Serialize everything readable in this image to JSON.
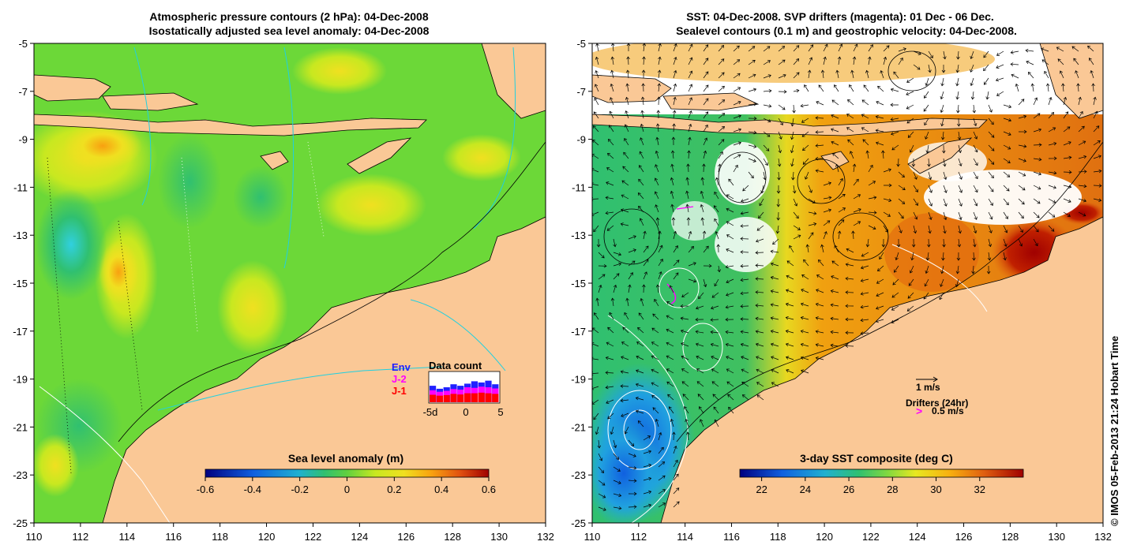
{
  "left_panel": {
    "title_line1": "Atmospheric pressure contours (2 hPa): 04-Dec-2008",
    "title_line2": "Isostatically adjusted sea level anomaly: 04-Dec-2008",
    "x_ticks": [
      "110",
      "112",
      "114",
      "116",
      "118",
      "120",
      "122",
      "124",
      "126",
      "128",
      "130",
      "132"
    ],
    "y_ticks": [
      "-5",
      "-7",
      "-9",
      "-11",
      "-13",
      "-15",
      "-17",
      "-19",
      "-21",
      "-23",
      "-25"
    ],
    "colorbar": {
      "title": "Sea level anomaly (m)",
      "labels": [
        "-0.6",
        "-0.4",
        "-0.2",
        "0",
        "0.2",
        "0.4",
        "0.6"
      ],
      "range": [
        -0.6,
        0.6
      ]
    },
    "data_count": {
      "title": "Data count",
      "legend": [
        "Env",
        "J-2",
        "J-1"
      ],
      "legend_colors": [
        "#2020ff",
        "#ff00ff",
        "#ff0000"
      ],
      "x_labels": [
        "-5d",
        "0",
        "5"
      ],
      "blue": [
        0.55,
        0.45,
        0.5,
        0.6,
        0.55,
        0.62,
        0.7,
        0.66,
        0.72,
        0.6
      ],
      "magenta": [
        0.4,
        0.35,
        0.38,
        0.44,
        0.42,
        0.5,
        0.48,
        0.52,
        0.5,
        0.46
      ],
      "red": [
        0.25,
        0.22,
        0.24,
        0.28,
        0.26,
        0.3,
        0.3,
        0.32,
        0.3,
        0.28
      ]
    }
  },
  "right_panel": {
    "title_line1": "SST: 04-Dec-2008. SVP drifters (magenta): 01 Dec - 06 Dec.",
    "title_line2": "Sealevel contours (0.1 m) and geostrophic velocity: 04-Dec-2008.",
    "x_ticks": [
      "110",
      "112",
      "114",
      "116",
      "118",
      "120",
      "122",
      "124",
      "126",
      "128",
      "130",
      "132"
    ],
    "y_ticks": [
      "-5",
      "-7",
      "-9",
      "-11",
      "-13",
      "-15",
      "-17",
      "-19",
      "-21",
      "-23",
      "-25"
    ],
    "colorbar": {
      "title": "3-day SST composite (deg C)",
      "labels": [
        "22",
        "24",
        "26",
        "28",
        "30",
        "32"
      ],
      "range": [
        21,
        34
      ]
    },
    "velocity_legend": "1 m/s",
    "drifter_legend_title": "Drifters (24hr)",
    "drifter_legend_value": "0.5 m/s",
    "drifter_symbol": ">"
  },
  "credit": "© IMOS 05-Feb-2013 21:24 Hobart Time",
  "colors": {
    "land": "#fac896",
    "sea_green": "#6cd838",
    "accent": "#ff00ff"
  }
}
